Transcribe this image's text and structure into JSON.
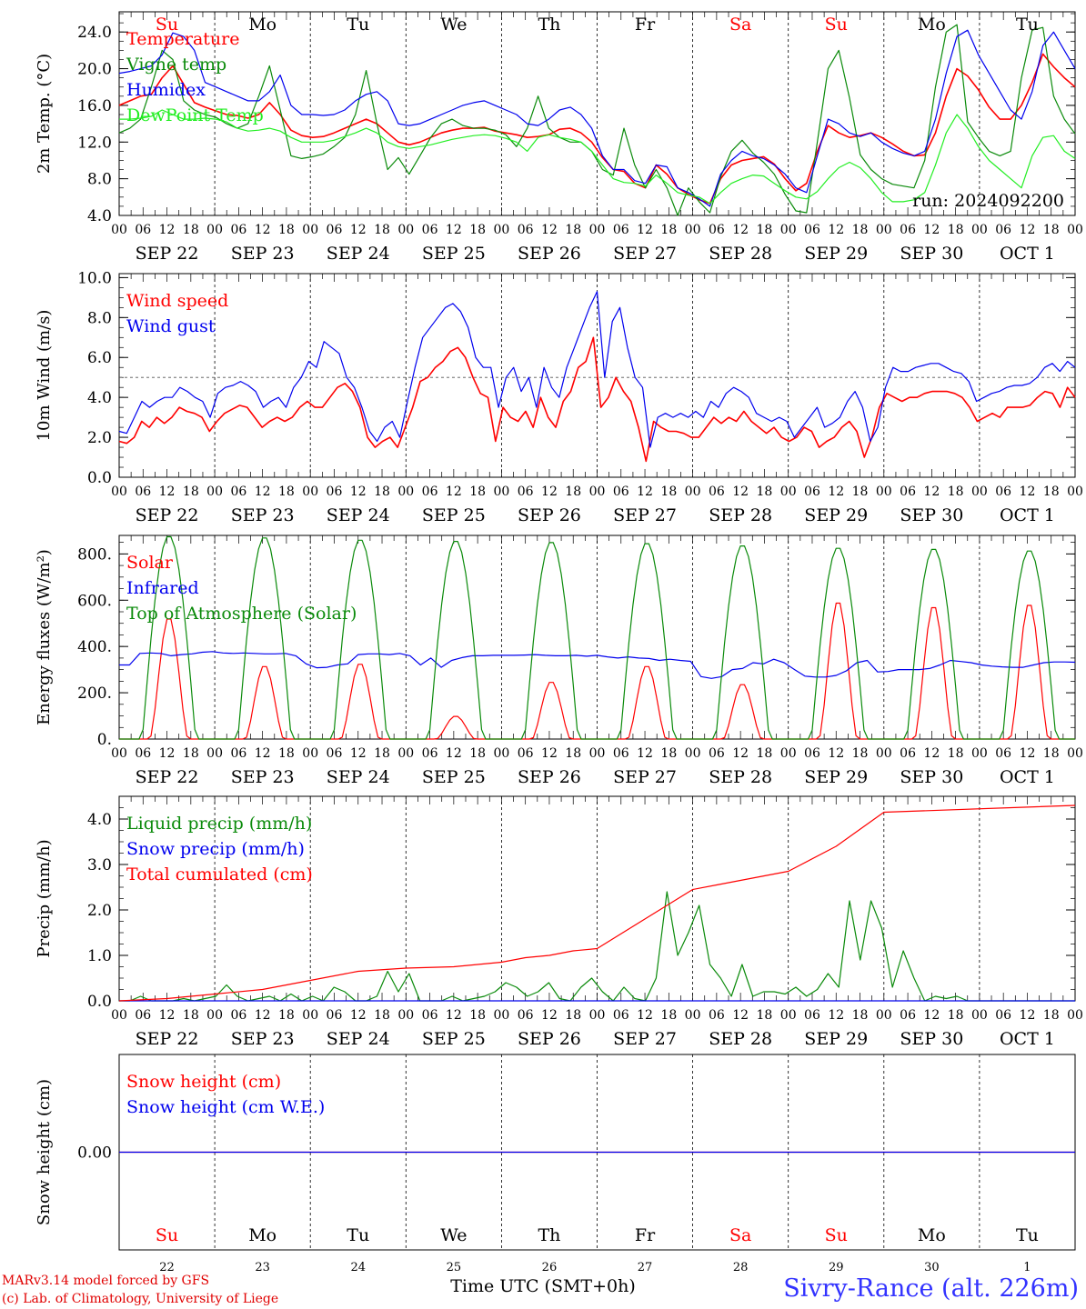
{
  "chart_data": [
    {
      "type": "line",
      "ylabel": "2m Temp. (°C)",
      "ylim": [
        4,
        26.2
      ],
      "yticks": [
        4.0,
        8.0,
        12.0,
        16.0,
        20.0,
        24.0
      ],
      "tick_decimals": 1,
      "legend_location": "top-left",
      "run_label": "run: 2024092200",
      "series": [
        {
          "name": "Temperature",
          "color": "#ff0000",
          "values": [
            16.0,
            16.5,
            17.0,
            17.2,
            19.0,
            20.3,
            18.3,
            16.3,
            15.8,
            15.4,
            15.0,
            14.9,
            14.6,
            15.0,
            16.3,
            15.0,
            13.3,
            12.7,
            12.5,
            12.6,
            13.0,
            13.5,
            14.0,
            14.5,
            14.0,
            13.0,
            12.0,
            11.7,
            12.0,
            12.5,
            13.0,
            13.3,
            13.5,
            13.5,
            13.6,
            13.2,
            13.0,
            12.8,
            12.5,
            12.6,
            12.8,
            13.4,
            13.5,
            13.0,
            12.0,
            10.3,
            9.0,
            8.8,
            7.5,
            7.0,
            9.5,
            8.5,
            7.0,
            6.3,
            5.7,
            5.3,
            8.0,
            9.5,
            10.0,
            10.2,
            10.4,
            9.6,
            8.0,
            6.7,
            7.5,
            11.0,
            13.8,
            13.0,
            12.5,
            12.7,
            13.0,
            12.5,
            11.8,
            11.0,
            10.5,
            10.6,
            13.0,
            17.0,
            20.0,
            19.2,
            17.7,
            15.8,
            14.5,
            14.5,
            16.0,
            18.5,
            21.6,
            20.2,
            19.0,
            18.0
          ]
        },
        {
          "name": "Vigne temp",
          "color": "#0a8a0a",
          "values": [
            13.0,
            13.5,
            14.5,
            18.0,
            22.0,
            21.0,
            16.5,
            15.5,
            15.0,
            14.7,
            14.0,
            13.5,
            14.0,
            17.0,
            20.3,
            15.5,
            10.5,
            10.2,
            10.4,
            10.7,
            11.5,
            12.5,
            15.0,
            19.8,
            14.0,
            9.0,
            10.3,
            8.5,
            10.5,
            12.5,
            14.0,
            14.5,
            13.8,
            13.5,
            13.5,
            13.3,
            12.8,
            11.5,
            13.5,
            17.0,
            13.5,
            12.5,
            12.0,
            12.0,
            11.0,
            9.0,
            8.4,
            13.5,
            9.5,
            7.0,
            9.0,
            7.0,
            4.0,
            7.0,
            5.5,
            4.3,
            8.2,
            11.0,
            12.2,
            10.8,
            9.8,
            8.5,
            6.3,
            4.5,
            4.3,
            12.0,
            20.0,
            22.0,
            16.8,
            10.6,
            9.0,
            8.0,
            7.4,
            7.2,
            7.0,
            10.0,
            18.0,
            24.0,
            24.8,
            14.2,
            12.5,
            11.0,
            10.5,
            11.0,
            19.0,
            24.2,
            24.5,
            17.0,
            14.5,
            12.9
          ]
        },
        {
          "name": "Humidex",
          "color": "#0000ee",
          "values": [
            19.5,
            19.7,
            20.0,
            20.3,
            21.5,
            23.9,
            23.5,
            22.0,
            18.5,
            18.0,
            17.5,
            17.0,
            16.5,
            16.5,
            17.5,
            19.3,
            16.0,
            15.0,
            15.0,
            14.9,
            15.0,
            15.5,
            16.5,
            17.2,
            17.5,
            16.5,
            14.0,
            13.8,
            14.0,
            14.5,
            15.0,
            15.5,
            16.0,
            16.3,
            16.5,
            16.0,
            15.5,
            15.0,
            14.0,
            13.8,
            14.5,
            15.5,
            15.8,
            15.0,
            13.5,
            10.5,
            9.0,
            9.0,
            7.8,
            7.5,
            9.5,
            9.3,
            7.0,
            6.5,
            5.8,
            5.0,
            8.5,
            10.0,
            11.0,
            10.5,
            10.2,
            9.5,
            8.5,
            7.0,
            6.5,
            10.5,
            14.5,
            14.0,
            13.0,
            12.6,
            13.0,
            12.0,
            11.3,
            10.8,
            10.5,
            11.0,
            14.5,
            19.5,
            23.5,
            24.2,
            21.5,
            19.5,
            17.5,
            15.5,
            14.5,
            17.5,
            22.5,
            24.0,
            22.0,
            20.0
          ]
        },
        {
          "name": "DewPoint Temp",
          "color": "#22ee22",
          "values": [
            14.5,
            14.5,
            14.6,
            14.8,
            15.5,
            15.0,
            14.5,
            14.5,
            14.6,
            14.5,
            14.2,
            13.5,
            13.2,
            13.3,
            13.5,
            13.2,
            12.5,
            12.0,
            12.0,
            12.0,
            12.2,
            12.6,
            13.0,
            13.5,
            13.0,
            12.0,
            11.5,
            11.3,
            11.5,
            11.7,
            12.0,
            12.3,
            12.5,
            12.7,
            12.8,
            12.7,
            12.4,
            12.0,
            11.0,
            12.5,
            12.8,
            12.5,
            12.3,
            12.0,
            11.0,
            9.5,
            8.0,
            7.6,
            7.5,
            7.2,
            8.4,
            7.5,
            6.5,
            6.2,
            6.0,
            5.3,
            6.5,
            7.5,
            8.0,
            8.4,
            8.3,
            7.5,
            6.7,
            6.0,
            5.8,
            6.6,
            8.0,
            9.2,
            9.8,
            9.2,
            8.0,
            6.5,
            5.5,
            5.5,
            5.7,
            6.5,
            9.5,
            13.0,
            15.0,
            13.5,
            11.5,
            10.0,
            9.0,
            8.0,
            7.0,
            10.5,
            12.5,
            12.7,
            11.0,
            10.2
          ]
        }
      ]
    },
    {
      "type": "line",
      "ylabel": "10m Wind (m/s)",
      "ylim": [
        0,
        10.2
      ],
      "yticks": [
        0.0,
        2.0,
        4.0,
        6.0,
        8.0,
        10.0
      ],
      "tick_decimals": 1,
      "reference_line": 5.0,
      "legend_location": "top-left",
      "series": [
        {
          "name": "Wind speed",
          "color": "#ff0000",
          "values": [
            1.8,
            1.7,
            2.0,
            2.8,
            2.5,
            3.0,
            2.7,
            3.0,
            3.5,
            3.3,
            3.2,
            3.0,
            2.3,
            2.8,
            3.2,
            3.4,
            3.6,
            3.5,
            3.0,
            2.5,
            2.8,
            3.0,
            2.8,
            3.0,
            3.5,
            3.8,
            3.5,
            3.5,
            4.0,
            4.5,
            4.7,
            4.3,
            3.5,
            2.0,
            1.5,
            1.8,
            2.0,
            1.5,
            2.5,
            3.5,
            4.8,
            5.0,
            5.5,
            5.8,
            6.3,
            6.5,
            6.0,
            5.0,
            4.2,
            4.0,
            1.8,
            3.5,
            3.0,
            2.8,
            3.3,
            2.5,
            4.0,
            3.0,
            2.5,
            3.8,
            4.3,
            5.5,
            5.8,
            7.0,
            3.5,
            4.0,
            5.0,
            4.3,
            3.8,
            2.5,
            0.8,
            2.8,
            2.5,
            2.3,
            2.3,
            2.2,
            2.0,
            2.0,
            2.5,
            3.0,
            2.7,
            3.0,
            2.8,
            3.3,
            2.8,
            2.5,
            2.2,
            2.5,
            2.0,
            1.8,
            2.0,
            2.5,
            2.3,
            1.5,
            1.8,
            2.0,
            2.5,
            2.8,
            2.3,
            1.0,
            2.0,
            3.5,
            4.2,
            4.0,
            3.8,
            4.0,
            4.0,
            4.2,
            4.3,
            4.3,
            4.3,
            4.2,
            4.0,
            3.5,
            2.8,
            3.0,
            3.2,
            3.0,
            3.5,
            3.5,
            3.5,
            3.6,
            4.0,
            4.3,
            4.2,
            3.5,
            4.5,
            4.0
          ]
        },
        {
          "name": "Wind gust",
          "color": "#0000ee",
          "values": [
            2.3,
            2.2,
            3.0,
            3.8,
            3.5,
            3.8,
            4.0,
            4.0,
            4.5,
            4.3,
            4.0,
            3.8,
            3.0,
            4.2,
            4.5,
            4.6,
            4.8,
            4.6,
            4.3,
            3.5,
            3.8,
            4.0,
            3.5,
            4.5,
            5.0,
            5.8,
            5.5,
            6.8,
            6.5,
            6.2,
            5.0,
            4.5,
            3.5,
            2.3,
            1.8,
            2.5,
            2.8,
            2.0,
            3.8,
            5.5,
            7.0,
            7.5,
            8.0,
            8.5,
            8.7,
            8.3,
            7.5,
            6.0,
            5.5,
            5.5,
            3.5,
            5.0,
            5.5,
            4.3,
            5.0,
            3.5,
            5.5,
            4.5,
            4.0,
            5.5,
            6.5,
            7.5,
            8.5,
            9.3,
            5.0,
            7.8,
            8.5,
            6.5,
            5.0,
            4.5,
            1.5,
            3.0,
            3.2,
            3.0,
            3.2,
            3.0,
            3.3,
            3.0,
            3.8,
            3.5,
            4.2,
            4.5,
            4.3,
            4.0,
            3.2,
            3.0,
            2.8,
            3.0,
            2.8,
            2.0,
            2.5,
            3.0,
            3.5,
            2.5,
            2.7,
            3.0,
            3.8,
            4.3,
            3.5,
            1.8,
            2.5,
            4.5,
            5.5,
            5.3,
            5.3,
            5.5,
            5.6,
            5.7,
            5.7,
            5.5,
            5.3,
            5.2,
            4.8,
            3.8,
            4.0,
            4.2,
            4.3,
            4.5,
            4.6,
            4.6,
            4.7,
            5.0,
            5.5,
            5.7,
            5.3,
            5.8,
            5.5
          ]
        }
      ]
    },
    {
      "type": "line",
      "ylabel": "Energy fluxes (W/m²)",
      "ylim": [
        0,
        880
      ],
      "yticks": [
        0,
        200,
        400,
        600,
        800
      ],
      "tick_decimals": 0,
      "legend_location": "top-left",
      "series": [
        {
          "name": "Solar",
          "color": "#ff0000",
          "daily_peaks": [
            530,
            320,
            330,
            100,
            250,
            320,
            240,
            600,
            580,
            590
          ]
        },
        {
          "name": "Infrared",
          "color": "#0000ee",
          "values": [
            320,
            320,
            370,
            372,
            370,
            360,
            365,
            368,
            375,
            378,
            372,
            370,
            372,
            370,
            368,
            368,
            370,
            360,
            325,
            308,
            310,
            320,
            325,
            365,
            368,
            368,
            365,
            370,
            360,
            320,
            350,
            310,
            340,
            352,
            360,
            360,
            362,
            362,
            362,
            363,
            365,
            362,
            360,
            360,
            362,
            358,
            362,
            355,
            350,
            355,
            350,
            348,
            340,
            345,
            340,
            336,
            270,
            262,
            270,
            300,
            305,
            330,
            325,
            345,
            330,
            300,
            272,
            268,
            268,
            275,
            295,
            330,
            340,
            290,
            292,
            300,
            300,
            300,
            305,
            320,
            340,
            335,
            330,
            320,
            315,
            312,
            310,
            310,
            320,
            330,
            333,
            333,
            332
          ]
        },
        {
          "name": "Top of Atmosphere (Solar)",
          "color": "#0a8a0a",
          "daily_peaks": [
            880,
            875,
            865,
            860,
            855,
            850,
            840,
            830,
            825,
            818
          ]
        }
      ]
    },
    {
      "type": "line",
      "ylabel": "Precip (mm/h)",
      "ylim": [
        0,
        4.5
      ],
      "yticks": [
        0.0,
        1.0,
        2.0,
        3.0,
        4.0
      ],
      "tick_decimals": 1,
      "legend_location": "top-left",
      "series": [
        {
          "name": "Liquid precip (mm/h)",
          "color": "#0a8a0a",
          "values": [
            0,
            0,
            0.1,
            0,
            0,
            0,
            0.05,
            0,
            0.05,
            0.1,
            0.35,
            0.1,
            0,
            0.05,
            0.1,
            0,
            0.15,
            0,
            0.1,
            0,
            0.3,
            0.2,
            0,
            0,
            0.1,
            0.65,
            0.2,
            0.6,
            0,
            0,
            0,
            0.1,
            0,
            0.05,
            0.1,
            0.2,
            0.4,
            0.3,
            0.1,
            0.2,
            0.4,
            0.05,
            0,
            0.3,
            0.5,
            0.2,
            0,
            0.3,
            0.05,
            0,
            0.5,
            2.4,
            1.0,
            1.5,
            2.1,
            0.8,
            0.5,
            0.1,
            0.8,
            0.1,
            0.2,
            0.2,
            0.15,
            0.3,
            0.1,
            0.25,
            0.6,
            0.3,
            2.2,
            0.9,
            2.2,
            1.6,
            0.3,
            1.1,
            0.5,
            0,
            0.1,
            0.05,
            0.1,
            0,
            0,
            0,
            0,
            0,
            0,
            0,
            0,
            0,
            0,
            0
          ]
        },
        {
          "name": "Snow precip (mm/h)",
          "color": "#0000ee",
          "values": [
            0,
            0,
            0,
            0,
            0,
            0,
            0,
            0,
            0,
            0
          ]
        },
        {
          "name": "Total cumulated (cm)",
          "color": "#ff0000",
          "x": [
            0,
            12,
            18,
            24,
            36,
            48,
            60,
            72,
            84,
            96,
            102,
            108,
            114,
            120,
            132,
            144,
            150,
            156,
            162,
            168,
            180,
            192,
            240
          ],
          "values": [
            0,
            0.05,
            0.1,
            0.15,
            0.25,
            0.45,
            0.65,
            0.72,
            0.75,
            0.85,
            0.95,
            1.0,
            1.1,
            1.15,
            1.8,
            2.45,
            2.55,
            2.65,
            2.75,
            2.85,
            3.4,
            4.15,
            4.3
          ]
        }
      ]
    },
    {
      "type": "line",
      "ylabel": "Snow height (cm)",
      "ylim": [
        -1,
        1
      ],
      "yticks": [
        0
      ],
      "tick_decimals": 2,
      "legend_location": "top-left",
      "series": [
        {
          "name": "Snow height (cm)",
          "color": "#ff0000",
          "values": [
            0,
            0
          ]
        },
        {
          "name": "Snow height (cm W.E.)",
          "color": "#0000ee",
          "values": [
            0,
            0
          ]
        }
      ]
    }
  ],
  "time_axis": {
    "hour_labels": [
      "00",
      "06",
      "12",
      "18"
    ],
    "final_hour_label": "00",
    "dates": [
      "SEP 22",
      "SEP 23",
      "SEP 24",
      "SEP 25",
      "SEP 26",
      "SEP 27",
      "SEP 28",
      "SEP 29",
      "SEP 30",
      "OCT  1"
    ],
    "weekdays": [
      {
        "label": "Su",
        "color": "#ff0000"
      },
      {
        "label": "Mo",
        "color": "#000000"
      },
      {
        "label": "Tu",
        "color": "#000000"
      },
      {
        "label": "We",
        "color": "#000000"
      },
      {
        "label": "Th",
        "color": "#000000"
      },
      {
        "label": "Fr",
        "color": "#000000"
      },
      {
        "label": "Sa",
        "color": "#ff0000"
      },
      {
        "label": "Su",
        "color": "#ff0000"
      },
      {
        "label": "Mo",
        "color": "#000000"
      },
      {
        "label": "Tu",
        "color": "#000000"
      }
    ],
    "day_numbers": [
      "22",
      "23",
      "24",
      "25",
      "26",
      "27",
      "28",
      "29",
      "30",
      "1"
    ],
    "xlabel": "Time UTC (SMT+0h)"
  },
  "footer": {
    "credit_line1": "MARv3.14 model forced by GFS",
    "credit_line2": "(c) Lab. of Climatology, University of Liege",
    "location": "Sivry-Rance (alt. 226m)"
  }
}
